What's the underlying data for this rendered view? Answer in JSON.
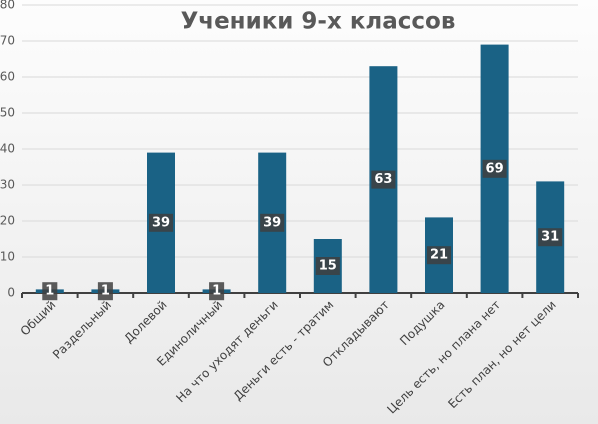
{
  "chart_data": {
    "type": "bar",
    "title": "Ученики 9-х классов",
    "categories": [
      "Общий",
      "Раздельный",
      "Долевой",
      "Единоличный",
      "На что уходят деньги",
      "Деньги есть - тратим",
      "Откладывают",
      "Подушка",
      "Цель есть, но плана нет",
      "Есть план, но нет цели"
    ],
    "values": [
      1,
      1,
      39,
      1,
      39,
      15,
      63,
      21,
      69,
      31
    ],
    "color": "#1a6285",
    "ylim": [
      0,
      80
    ],
    "yticks": [
      0,
      10,
      20,
      30,
      40,
      50,
      60,
      70,
      80
    ],
    "grid": true
  }
}
